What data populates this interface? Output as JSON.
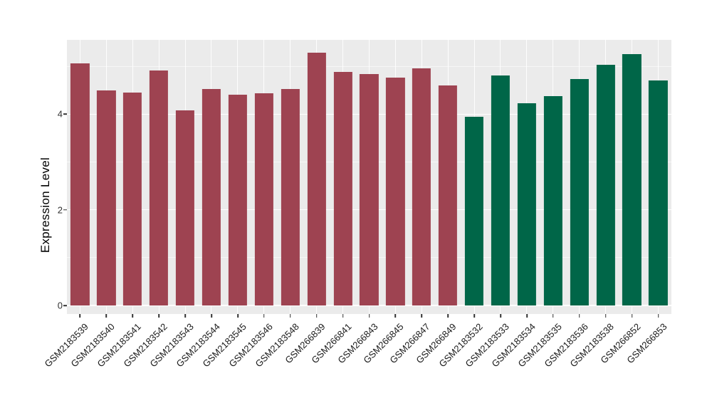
{
  "chart_data": {
    "type": "bar",
    "title": "",
    "xlabel": "",
    "ylabel": "Expression Level",
    "ylim": [
      0,
      5.6
    ],
    "yticks": [
      {
        "label": "0",
        "value": 0
      },
      {
        "label": "2",
        "value": 2
      },
      {
        "label": "4",
        "value": 4
      }
    ],
    "minor_gridlines": [
      1,
      3,
      5
    ],
    "grid": "white major and minor horizontal lines plus white vertical lines at category centers on gray panel",
    "legend_position": "none",
    "colors": {
      "group1": "#9E4351",
      "group2": "#006648"
    },
    "panel_background": "#EBEBEB",
    "grid_color": "#FFFFFF",
    "bars": [
      {
        "label": "GSM2183539",
        "value": 5.06,
        "group": "group1"
      },
      {
        "label": "GSM2183540",
        "value": 4.5,
        "group": "group1"
      },
      {
        "label": "GSM2183541",
        "value": 4.45,
        "group": "group1"
      },
      {
        "label": "GSM2183542",
        "value": 4.91,
        "group": "group1"
      },
      {
        "label": "GSM2183543",
        "value": 4.08,
        "group": "group1"
      },
      {
        "label": "GSM2183544",
        "value": 4.53,
        "group": "group1"
      },
      {
        "label": "GSM2183545",
        "value": 4.4,
        "group": "group1"
      },
      {
        "label": "GSM2183546",
        "value": 4.44,
        "group": "group1"
      },
      {
        "label": "GSM2183548",
        "value": 4.52,
        "group": "group1"
      },
      {
        "label": "GSM266839",
        "value": 5.29,
        "group": "group1"
      },
      {
        "label": "GSM266841",
        "value": 4.88,
        "group": "group1"
      },
      {
        "label": "GSM266843",
        "value": 4.84,
        "group": "group1"
      },
      {
        "label": "GSM266845",
        "value": 4.76,
        "group": "group1"
      },
      {
        "label": "GSM266847",
        "value": 4.96,
        "group": "group1"
      },
      {
        "label": "GSM266849",
        "value": 4.6,
        "group": "group1"
      },
      {
        "label": "GSM2183532",
        "value": 3.94,
        "group": "group2"
      },
      {
        "label": "GSM2183533",
        "value": 4.8,
        "group": "group2"
      },
      {
        "label": "GSM2183534",
        "value": 4.22,
        "group": "group2"
      },
      {
        "label": "GSM2183535",
        "value": 4.37,
        "group": "group2"
      },
      {
        "label": "GSM2183536",
        "value": 4.73,
        "group": "group2"
      },
      {
        "label": "GSM2183538",
        "value": 5.03,
        "group": "group2"
      },
      {
        "label": "GSM266852",
        "value": 5.26,
        "group": "group2"
      },
      {
        "label": "GSM266853",
        "value": 4.71,
        "group": "group2"
      }
    ]
  }
}
